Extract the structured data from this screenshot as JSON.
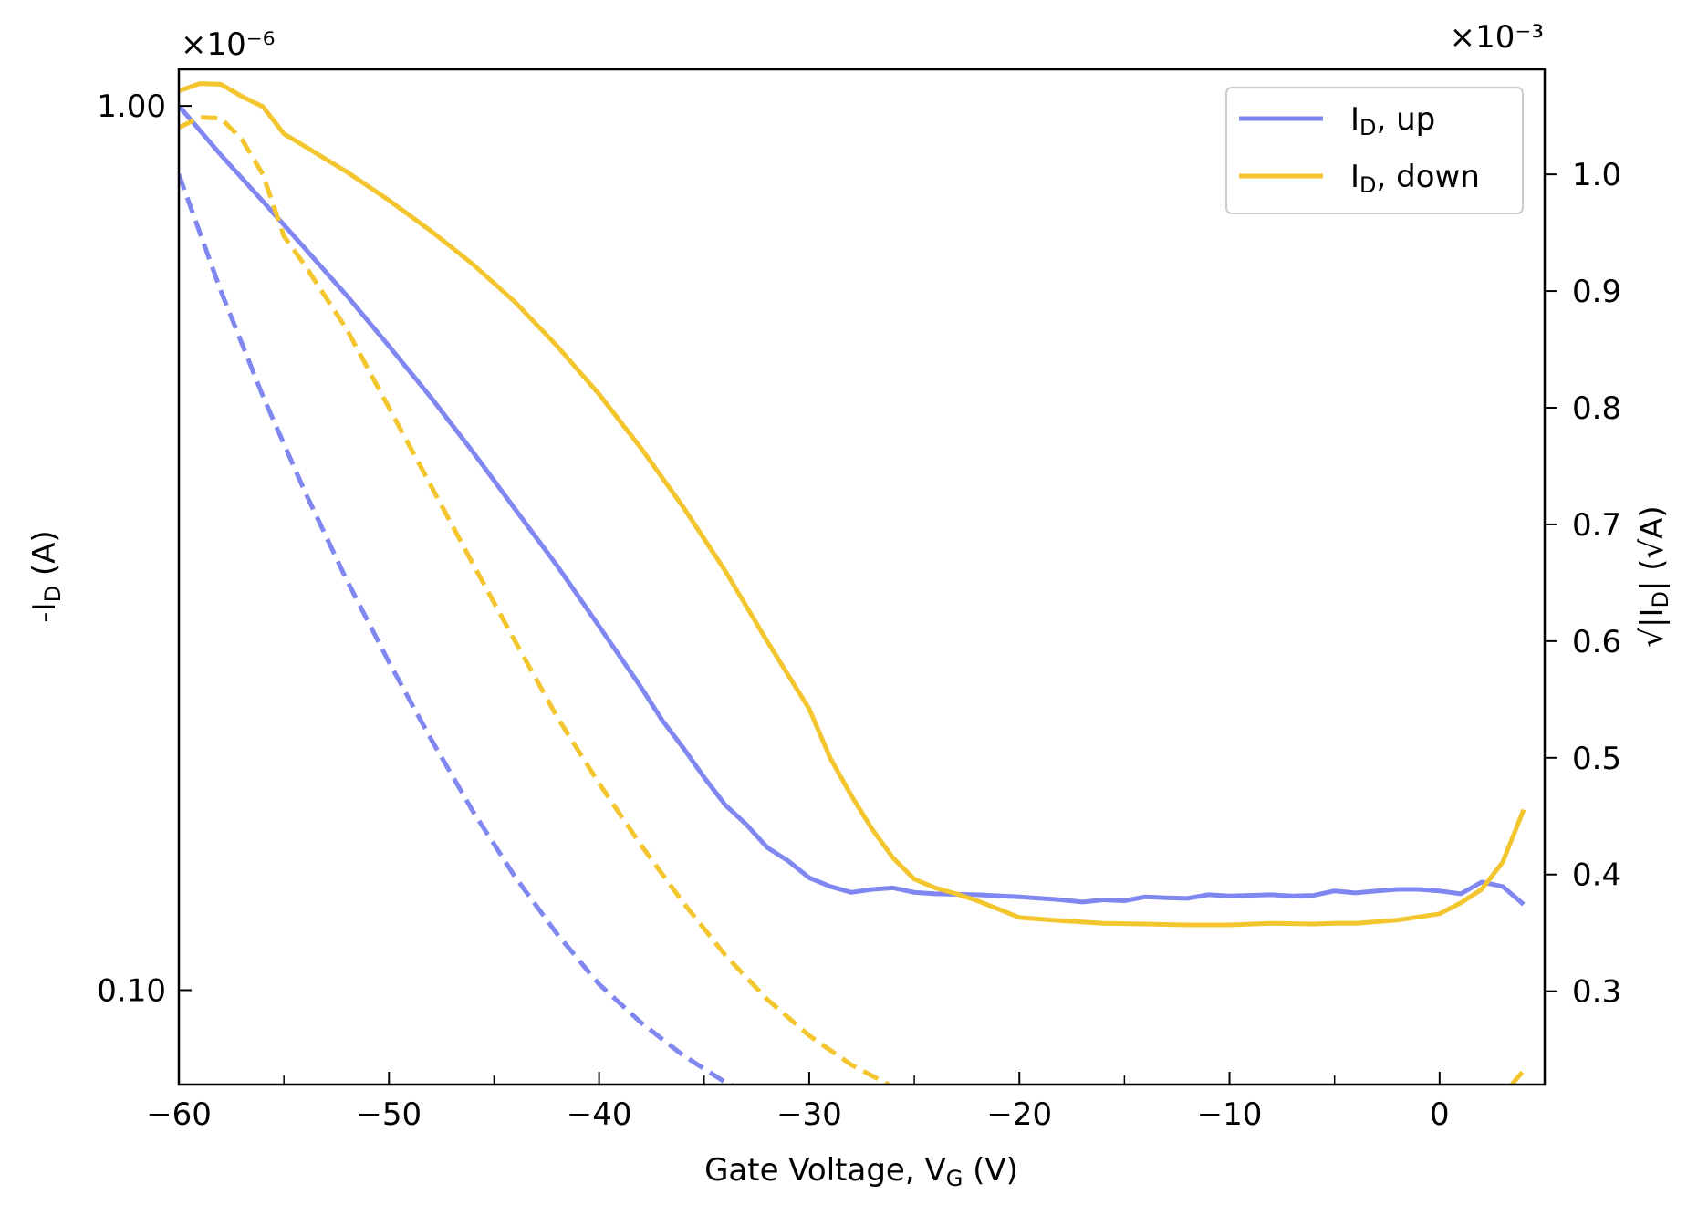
{
  "chart_data": {
    "type": "line",
    "title": "",
    "xlabel": {
      "main": "Gate Voltage, V",
      "sub": "G",
      "tail": " (V)"
    },
    "ylabel_left": {
      "main": "-I",
      "sub": "D",
      "tail": " (A)"
    },
    "ylabel_right": {
      "main": "√|I",
      "sub": "D",
      "tail": "| (√A)"
    },
    "xlim": [
      -60,
      5
    ],
    "x_ticks": [
      -60,
      -50,
      -40,
      -30,
      -20,
      -10,
      0
    ],
    "x_tick_labels": [
      "−60",
      "−50",
      "−40",
      "−30",
      "−20",
      "−10",
      "0"
    ],
    "ylim_left": [
      0.0782,
      1.1
    ],
    "yscale_left": "log",
    "y_left_ticks": [
      0.1,
      1.0
    ],
    "y_left_tick_labels": [
      "0.10",
      "1.00"
    ],
    "y_left_offset": "×10⁻⁶",
    "ylim_right": [
      0.22,
      1.09
    ],
    "y_right_ticks": [
      0.3,
      0.4,
      0.5,
      0.6,
      0.7,
      0.8,
      0.9,
      1.0
    ],
    "y_right_tick_labels": [
      "0.3",
      "0.4",
      "0.5",
      "0.6",
      "0.7",
      "0.8",
      "0.9",
      "1.0"
    ],
    "y_right_offset": "×10⁻³",
    "grid": false,
    "legend_position": "top-right",
    "legend": [
      {
        "main": "I",
        "sub": "D",
        "tail": ", up",
        "color": "#8087F0"
      },
      {
        "main": "I",
        "sub": "D",
        "tail": ", down",
        "color": "#F3C630"
      }
    ],
    "series": [
      {
        "id": "up-log",
        "axis": "left",
        "style": "solid",
        "color": "#8087F0",
        "x": [
          -60,
          -58,
          -56,
          -54,
          -52,
          -50,
          -48,
          -46,
          -44,
          -42,
          -40,
          -38,
          -37,
          -36,
          -35,
          -34,
          -33,
          -32,
          -31,
          -30,
          -29,
          -28,
          -27,
          -26,
          -25,
          -24,
          -22,
          -20,
          -18,
          -17,
          -16,
          -15,
          -14,
          -13,
          -12,
          -11,
          -10,
          -8,
          -7,
          -6,
          -5,
          -4,
          -3,
          -2,
          -1,
          0,
          1,
          2,
          3,
          4
        ],
        "y": [
          1.0,
          0.88,
          0.78,
          0.69,
          0.61,
          0.535,
          0.468,
          0.406,
          0.35,
          0.302,
          0.258,
          0.22,
          0.202,
          0.188,
          0.174,
          0.162,
          0.154,
          0.145,
          0.14,
          0.134,
          0.131,
          0.129,
          0.13,
          0.1305,
          0.129,
          0.1285,
          0.1282,
          0.1275,
          0.1265,
          0.1258,
          0.1265,
          0.1262,
          0.1275,
          0.1272,
          0.127,
          0.1282,
          0.1278,
          0.1282,
          0.1278,
          0.128,
          0.1295,
          0.1288,
          0.1295,
          0.13,
          0.13,
          0.1295,
          0.1285,
          0.1325,
          0.131,
          0.125
        ]
      },
      {
        "id": "up-sqrt",
        "axis": "right",
        "style": "dashed",
        "color": "#8087F0",
        "x": [
          -60,
          -58,
          -56,
          -54,
          -52,
          -50,
          -48,
          -46,
          -44,
          -42,
          -40,
          -38,
          -36,
          -34,
          -32,
          -30,
          -29,
          -28,
          -27,
          -26,
          -25,
          -20,
          -15,
          -10,
          -5,
          0,
          2,
          3,
          4
        ],
        "y": [
          1.0,
          0.9,
          0.81,
          0.728,
          0.652,
          0.582,
          0.516,
          0.454,
          0.398,
          0.349,
          0.306,
          0.273,
          0.245,
          0.222,
          0.206,
          0.196,
          0.193,
          0.192,
          0.193,
          0.193,
          0.192,
          0.191,
          0.191,
          0.19,
          0.191,
          0.194,
          0.196,
          0.195,
          0.191
        ]
      },
      {
        "id": "down-log",
        "axis": "left",
        "style": "solid",
        "color": "#F3C630",
        "x": [
          -60,
          -59,
          -58,
          -57,
          -56,
          -55,
          -54,
          -52,
          -50,
          -48,
          -46,
          -44,
          -42,
          -40,
          -38,
          -36,
          -34,
          -32,
          -30,
          -29,
          -28,
          -27,
          -26,
          -25,
          -24,
          -23,
          -22,
          -21,
          -20,
          -18,
          -16,
          -14,
          -12,
          -10,
          -8,
          -6,
          -5,
          -4,
          -2,
          0,
          1,
          2,
          3,
          4
        ],
        "y": [
          1.04,
          1.06,
          1.058,
          1.025,
          0.998,
          0.93,
          0.9,
          0.842,
          0.782,
          0.722,
          0.662,
          0.6,
          0.535,
          0.472,
          0.41,
          0.352,
          0.298,
          0.248,
          0.208,
          0.183,
          0.166,
          0.152,
          0.141,
          0.1335,
          0.1305,
          0.1285,
          0.1262,
          0.1235,
          0.1208,
          0.1198,
          0.119,
          0.1188,
          0.1185,
          0.1185,
          0.119,
          0.1188,
          0.119,
          0.119,
          0.12,
          0.122,
          0.1255,
          0.13,
          0.1395,
          0.16
        ]
      },
      {
        "id": "down-sqrt",
        "axis": "right",
        "style": "dashed",
        "color": "#F3C630",
        "x": [
          -60,
          -59,
          -58,
          -57,
          -56,
          -55,
          -54,
          -52,
          -50,
          -48,
          -46,
          -44,
          -42,
          -40,
          -38,
          -36,
          -34,
          -32,
          -30,
          -28,
          -26,
          -24,
          -22,
          -20,
          -18,
          -16,
          -14,
          -12,
          -10,
          -8,
          -6,
          -4,
          -2,
          0,
          1,
          2,
          3,
          4
        ],
        "y": [
          1.04,
          1.049,
          1.048,
          1.03,
          1.0,
          0.947,
          0.922,
          0.867,
          0.8,
          0.733,
          0.666,
          0.6,
          0.535,
          0.478,
          0.425,
          0.376,
          0.331,
          0.293,
          0.262,
          0.237,
          0.218,
          0.205,
          0.197,
          0.192,
          0.191,
          0.19,
          0.19,
          0.19,
          0.19,
          0.19,
          0.19,
          0.19,
          0.191,
          0.194,
          0.197,
          0.201,
          0.211,
          0.232
        ]
      }
    ]
  }
}
